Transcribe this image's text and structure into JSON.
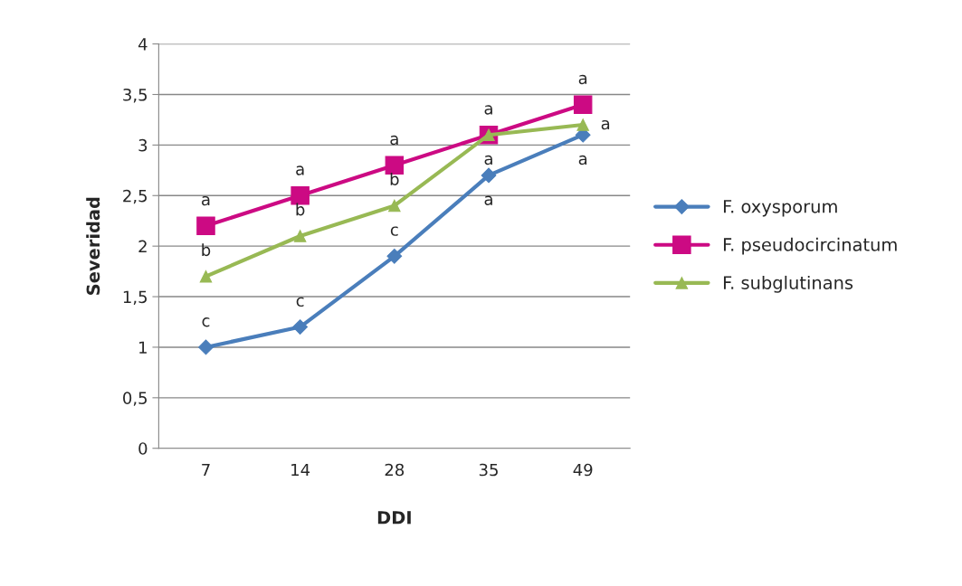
{
  "chart_data": {
    "type": "line",
    "xlabel": "DDI",
    "ylabel": "Severidad",
    "categories": [
      "7",
      "14",
      "28",
      "35",
      "49"
    ],
    "series": [
      {
        "name": "F. oxysporum",
        "color": "#4a7ebb",
        "values": [
          1.0,
          1.2,
          1.9,
          2.7,
          3.1
        ],
        "marker": "diamond"
      },
      {
        "name": "F. pseudocircinatum",
        "color": "#cc0a83",
        "values": [
          2.2,
          2.5,
          2.8,
          3.1,
          3.4
        ],
        "marker": "square"
      },
      {
        "name": "F. subglutinans",
        "color": "#98b954",
        "values": [
          1.7,
          2.1,
          2.4,
          3.1,
          3.2
        ],
        "marker": "triangle"
      }
    ],
    "ylim": [
      0,
      4
    ],
    "yticks": [
      {
        "value": 0,
        "label": "0"
      },
      {
        "value": 0.5,
        "label": "0,5"
      },
      {
        "value": 1,
        "label": "1"
      },
      {
        "value": 1.5,
        "label": "1,5"
      },
      {
        "value": 2,
        "label": "2"
      },
      {
        "value": 2.5,
        "label": "2,5"
      },
      {
        "value": 3,
        "label": "3"
      },
      {
        "value": 3.5,
        "label": "3,5"
      },
      {
        "value": 4,
        "label": "4"
      }
    ],
    "grid": "y",
    "legend": "right",
    "annotations": [
      {
        "text": "a",
        "x": "7",
        "y": 2.2
      },
      {
        "text": "b",
        "x": "7",
        "y": 1.7
      },
      {
        "text": "c",
        "x": "7",
        "y": 1.0
      },
      {
        "text": "a",
        "x": "14",
        "y": 2.5
      },
      {
        "text": "b",
        "x": "14",
        "y": 2.1
      },
      {
        "text": "c",
        "x": "14",
        "y": 1.2
      },
      {
        "text": "a",
        "x": "28",
        "y": 2.8
      },
      {
        "text": "b",
        "x": "28",
        "y": 2.4
      },
      {
        "text": "c",
        "x": "28",
        "y": 1.9
      },
      {
        "text": "a",
        "x": "35",
        "y": 3.1
      },
      {
        "text": "a",
        "x": "35",
        "y": 3.1
      },
      {
        "text": "a",
        "x": "35",
        "y": 2.7
      },
      {
        "text": "a",
        "x": "49",
        "y": 3.4
      },
      {
        "text": "a",
        "x": "49",
        "y": 3.2
      },
      {
        "text": "a",
        "x": "49",
        "y": 3.1
      }
    ]
  }
}
